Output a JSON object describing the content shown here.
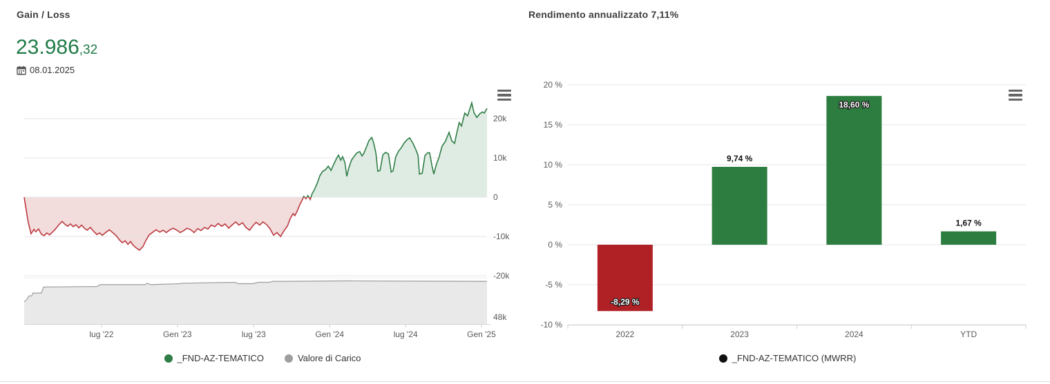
{
  "left_panel": {
    "title": "Gain / Loss",
    "value_int": "23.986",
    "value_dec": ",32",
    "value_color": "#1f7b47",
    "date": "08.01.2025",
    "legend": [
      {
        "label": "_FND-AZ-TEMATICO",
        "color": "#2e7d46"
      },
      {
        "label": "Valore di Carico",
        "color": "#9e9e9e"
      }
    ]
  },
  "right_panel": {
    "title": "Rendimento annualizzato 7,11%",
    "legend": [
      {
        "label": "_FND-AZ-TEMATICO (MWRR)",
        "color": "#111111"
      }
    ]
  },
  "chart_data": [
    {
      "type": "area",
      "name": "Gain / Loss over time",
      "unit": "thousands",
      "x_ticks": [
        {
          "f": 0.167,
          "label": "lug '22"
        },
        {
          "f": 0.331,
          "label": "Gen '23"
        },
        {
          "f": 0.496,
          "label": "lug '23"
        },
        {
          "f": 0.66,
          "label": "Gen '24"
        },
        {
          "f": 0.824,
          "label": "lug '24"
        },
        {
          "f": 0.988,
          "label": "Gen '25"
        }
      ],
      "y_ticks": [
        {
          "v": 20,
          "label": "20k"
        },
        {
          "v": 10,
          "label": "10k"
        },
        {
          "v": 0,
          "label": "0"
        },
        {
          "v": -10,
          "label": "-10k"
        },
        {
          "v": -20,
          "label": "-20k"
        }
      ],
      "series": [
        {
          "name": "_FND-AZ-TEMATICO",
          "line_pos_color": "#2e7d46",
          "fill_pos_color": "#dfece3",
          "line_neg_color": "#bb3a40",
          "fill_neg_color": "#f3dcdc",
          "points": [
            [
              0.0,
              0.0
            ],
            [
              0.004,
              -3.0
            ],
            [
              0.009,
              -6.5
            ],
            [
              0.015,
              -9.3
            ],
            [
              0.021,
              -8.2
            ],
            [
              0.025,
              -8.8
            ],
            [
              0.031,
              -8.1
            ],
            [
              0.037,
              -9.4
            ],
            [
              0.043,
              -9.8
            ],
            [
              0.049,
              -9.1
            ],
            [
              0.055,
              -9.6
            ],
            [
              0.061,
              -8.9
            ],
            [
              0.067,
              -8.2
            ],
            [
              0.075,
              -7.0
            ],
            [
              0.082,
              -6.2
            ],
            [
              0.088,
              -6.9
            ],
            [
              0.094,
              -7.4
            ],
            [
              0.1,
              -6.8
            ],
            [
              0.106,
              -7.5
            ],
            [
              0.112,
              -7.0
            ],
            [
              0.118,
              -7.8
            ],
            [
              0.124,
              -7.1
            ],
            [
              0.13,
              -7.9
            ],
            [
              0.136,
              -8.4
            ],
            [
              0.143,
              -7.7
            ],
            [
              0.151,
              -8.8
            ],
            [
              0.157,
              -9.5
            ],
            [
              0.163,
              -9.1
            ],
            [
              0.169,
              -9.7
            ],
            [
              0.176,
              -9.0
            ],
            [
              0.184,
              -8.3
            ],
            [
              0.191,
              -9.0
            ],
            [
              0.199,
              -9.8
            ],
            [
              0.206,
              -10.9
            ],
            [
              0.212,
              -11.6
            ],
            [
              0.218,
              -11.1
            ],
            [
              0.224,
              -12.0
            ],
            [
              0.23,
              -11.3
            ],
            [
              0.236,
              -12.3
            ],
            [
              0.242,
              -12.9
            ],
            [
              0.249,
              -13.5
            ],
            [
              0.257,
              -12.5
            ],
            [
              0.263,
              -11.0
            ],
            [
              0.27,
              -9.6
            ],
            [
              0.278,
              -8.9
            ],
            [
              0.285,
              -8.3
            ],
            [
              0.293,
              -8.9
            ],
            [
              0.3,
              -8.4
            ],
            [
              0.307,
              -9.0
            ],
            [
              0.315,
              -8.3
            ],
            [
              0.322,
              -7.9
            ],
            [
              0.33,
              -8.4
            ],
            [
              0.337,
              -9.0
            ],
            [
              0.345,
              -8.5
            ],
            [
              0.352,
              -7.9
            ],
            [
              0.36,
              -8.3
            ],
            [
              0.367,
              -9.0
            ],
            [
              0.375,
              -8.0
            ],
            [
              0.382,
              -8.5
            ],
            [
              0.39,
              -7.7
            ],
            [
              0.397,
              -8.1
            ],
            [
              0.404,
              -7.1
            ],
            [
              0.412,
              -7.5
            ],
            [
              0.419,
              -6.7
            ],
            [
              0.427,
              -7.4
            ],
            [
              0.434,
              -6.8
            ],
            [
              0.442,
              -7.9
            ],
            [
              0.449,
              -7.1
            ],
            [
              0.457,
              -6.3
            ],
            [
              0.464,
              -7.1
            ],
            [
              0.472,
              -6.5
            ],
            [
              0.479,
              -7.7
            ],
            [
              0.487,
              -8.4
            ],
            [
              0.494,
              -7.3
            ],
            [
              0.501,
              -6.4
            ],
            [
              0.509,
              -7.1
            ],
            [
              0.516,
              -6.3
            ],
            [
              0.524,
              -7.0
            ],
            [
              0.531,
              -8.0
            ],
            [
              0.539,
              -9.7
            ],
            [
              0.546,
              -9.0
            ],
            [
              0.554,
              -10.0
            ],
            [
              0.561,
              -8.6
            ],
            [
              0.569,
              -7.3
            ],
            [
              0.575,
              -5.4
            ],
            [
              0.581,
              -4.2
            ],
            [
              0.585,
              -4.7
            ],
            [
              0.59,
              -3.5
            ],
            [
              0.596,
              -1.8
            ],
            [
              0.6,
              -0.9
            ],
            [
              0.604,
              0.2
            ],
            [
              0.609,
              -0.4
            ],
            [
              0.613,
              0.4
            ],
            [
              0.618,
              -0.6
            ],
            [
              0.622,
              0.8
            ],
            [
              0.627,
              1.9
            ],
            [
              0.633,
              3.5
            ],
            [
              0.639,
              5.5
            ],
            [
              0.645,
              6.6
            ],
            [
              0.651,
              7.0
            ],
            [
              0.657,
              7.9
            ],
            [
              0.663,
              6.8
            ],
            [
              0.669,
              8.4
            ],
            [
              0.675,
              9.9
            ],
            [
              0.679,
              10.7
            ],
            [
              0.684,
              9.4
            ],
            [
              0.688,
              10.3
            ],
            [
              0.693,
              8.8
            ],
            [
              0.697,
              5.3
            ],
            [
              0.701,
              7.3
            ],
            [
              0.707,
              9.4
            ],
            [
              0.713,
              10.4
            ],
            [
              0.719,
              11.3
            ],
            [
              0.725,
              11.6
            ],
            [
              0.73,
              10.5
            ],
            [
              0.734,
              11.2
            ],
            [
              0.74,
              12.9
            ],
            [
              0.745,
              14.4
            ],
            [
              0.751,
              15.2
            ],
            [
              0.755,
              13.8
            ],
            [
              0.76,
              11.2
            ],
            [
              0.764,
              6.6
            ],
            [
              0.769,
              6.8
            ],
            [
              0.775,
              10.8
            ],
            [
              0.781,
              11.4
            ],
            [
              0.787,
              11.0
            ],
            [
              0.793,
              6.4
            ],
            [
              0.797,
              6.7
            ],
            [
              0.803,
              10.3
            ],
            [
              0.809,
              11.7
            ],
            [
              0.815,
              12.6
            ],
            [
              0.821,
              13.8
            ],
            [
              0.827,
              14.6
            ],
            [
              0.833,
              15.1
            ],
            [
              0.84,
              13.7
            ],
            [
              0.846,
              12.2
            ],
            [
              0.851,
              10.6
            ],
            [
              0.854,
              5.9
            ],
            [
              0.86,
              6.1
            ],
            [
              0.866,
              10.6
            ],
            [
              0.872,
              11.3
            ],
            [
              0.876,
              11.3
            ],
            [
              0.881,
              8.0
            ],
            [
              0.885,
              5.9
            ],
            [
              0.891,
              8.5
            ],
            [
              0.896,
              10.0
            ],
            [
              0.903,
              13.0
            ],
            [
              0.91,
              14.2
            ],
            [
              0.918,
              16.5
            ],
            [
              0.924,
              14.3
            ],
            [
              0.93,
              13.7
            ],
            [
              0.934,
              16.0
            ],
            [
              0.94,
              19.0
            ],
            [
              0.945,
              18.1
            ],
            [
              0.952,
              21.4
            ],
            [
              0.958,
              20.7
            ],
            [
              0.963,
              22.5
            ],
            [
              0.967,
              24.0
            ],
            [
              0.972,
              21.5
            ],
            [
              0.978,
              20.3
            ],
            [
              0.984,
              21.2
            ],
            [
              0.99,
              21.7
            ],
            [
              0.994,
              21.4
            ],
            [
              1.0,
              22.6
            ]
          ]
        },
        {
          "name": "Valore di Carico",
          "axis_label": "48k",
          "line_color": "#9b9b9b",
          "fill_color": "#e9e9e9",
          "scale": "pane-fraction",
          "points": [
            [
              0.0,
              0.47
            ],
            [
              0.007,
              0.54
            ],
            [
              0.01,
              0.6
            ],
            [
              0.016,
              0.6
            ],
            [
              0.019,
              0.66
            ],
            [
              0.037,
              0.66
            ],
            [
              0.042,
              0.79
            ],
            [
              0.157,
              0.8
            ],
            [
              0.164,
              0.84
            ],
            [
              0.261,
              0.84
            ],
            [
              0.266,
              0.87
            ],
            [
              0.273,
              0.84
            ],
            [
              0.336,
              0.86
            ],
            [
              0.343,
              0.87
            ],
            [
              0.455,
              0.89
            ],
            [
              0.463,
              0.86
            ],
            [
              0.493,
              0.86
            ],
            [
              0.507,
              0.89
            ],
            [
              0.53,
              0.89
            ],
            [
              0.537,
              0.91
            ],
            [
              0.56,
              0.91
            ],
            [
              0.7,
              0.92
            ],
            [
              1.0,
              0.91
            ]
          ]
        }
      ]
    },
    {
      "type": "bar",
      "name": "Rendimento annualizzato",
      "categories": [
        "2022",
        "2023",
        "2024",
        "YTD"
      ],
      "values": [
        -8.29,
        9.74,
        18.6,
        1.67
      ],
      "labels": [
        "-8,29 %",
        "9,74 %",
        "18,60 %",
        "1,67 %"
      ],
      "label_pos": [
        "inside-bottom",
        "above",
        "inside-top",
        "above"
      ],
      "bar_colors": [
        "#b02126",
        "#2e7d40",
        "#2e7d40",
        "#2e7d40"
      ],
      "ylim": [
        -10,
        20
      ],
      "y_ticks": [
        {
          "v": 20,
          "label": "20 %"
        },
        {
          "v": 15,
          "label": "15 %"
        },
        {
          "v": 10,
          "label": "10 %"
        },
        {
          "v": 5,
          "label": "5 %"
        },
        {
          "v": 0,
          "label": "0 %"
        },
        {
          "v": -5,
          "label": "-5 %"
        },
        {
          "v": -10,
          "label": "-10 %"
        }
      ]
    }
  ]
}
